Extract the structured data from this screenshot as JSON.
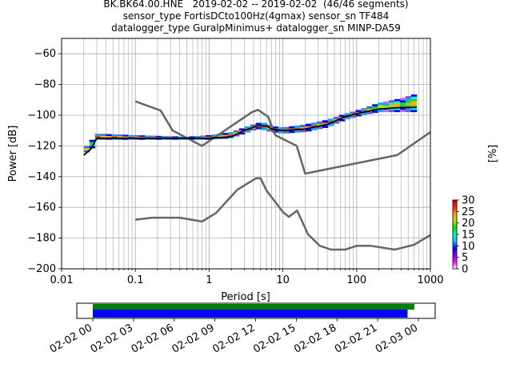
{
  "title_lines": [
    "BK.BK64.00.HNE   2019-02-02 -- 2019-02-02  (46/46 segments)",
    "sensor_type FortisDCto100Hz(4gmax) sensor_sn TF484",
    "datalogger_type GuralpMinimus+ datalogger_sn MINP-DA59"
  ],
  "chart_data": {
    "type": "heatmap",
    "xlabel": "Period [s]",
    "ylabel": "Power [dB]",
    "x_scale": "log",
    "xlim": [
      0.01,
      1000
    ],
    "ylim": [
      -200,
      -50
    ],
    "xticks": [
      "0.01",
      "0.1",
      "1",
      "10",
      "100",
      "1000"
    ],
    "yticks": [
      -60,
      -80,
      -100,
      -120,
      -140,
      -160,
      -180,
      -200
    ],
    "grid": true,
    "colorbar": {
      "label": "[%]",
      "range": [
        0,
        30
      ],
      "ticks": [
        0,
        5,
        10,
        15,
        20,
        25,
        30
      ]
    },
    "noise_model_high": [
      [
        0.1,
        -91
      ],
      [
        0.22,
        -97
      ],
      [
        0.32,
        -110
      ],
      [
        0.8,
        -120
      ],
      [
        3.8,
        -98
      ],
      [
        4.6,
        -96.5
      ],
      [
        6.3,
        -101
      ],
      [
        7.9,
        -113
      ],
      [
        15.4,
        -120
      ],
      [
        20,
        -138
      ],
      [
        354.8,
        -126
      ],
      [
        1000,
        -111
      ]
    ],
    "noise_model_low": [
      [
        0.1,
        -168
      ],
      [
        0.17,
        -166.7
      ],
      [
        0.4,
        -166.7
      ],
      [
        0.8,
        -169.2
      ],
      [
        1.24,
        -163.7
      ],
      [
        2.4,
        -148.6
      ],
      [
        4.3,
        -141.1
      ],
      [
        5,
        -141.1
      ],
      [
        6,
        -149
      ],
      [
        10,
        -163
      ],
      [
        12,
        -166.2
      ],
      [
        15.6,
        -162.1
      ],
      [
        21.9,
        -177.5
      ],
      [
        31.6,
        -185
      ],
      [
        45,
        -187.5
      ],
      [
        70,
        -187.5
      ],
      [
        101,
        -185
      ],
      [
        154,
        -185
      ],
      [
        328,
        -187.5
      ],
      [
        600,
        -184.4
      ],
      [
        1000,
        -178
      ]
    ],
    "median_curve": [
      [
        0.02,
        -126
      ],
      [
        0.025,
        -122
      ],
      [
        0.03,
        -115
      ],
      [
        0.1,
        -115
      ],
      [
        0.5,
        -115
      ],
      [
        1,
        -115
      ],
      [
        2,
        -114
      ],
      [
        3,
        -110
      ],
      [
        4.5,
        -107
      ],
      [
        6,
        -107
      ],
      [
        7,
        -109
      ],
      [
        10,
        -110
      ],
      [
        20,
        -109
      ],
      [
        40,
        -106
      ],
      [
        70,
        -101
      ],
      [
        100,
        -99
      ],
      [
        200,
        -96
      ],
      [
        400,
        -95
      ],
      [
        650,
        -95
      ]
    ],
    "psd_band": [
      [
        0.02,
        -125,
        -122
      ],
      [
        0.025,
        -123,
        -117
      ],
      [
        0.03,
        -116,
        -112
      ],
      [
        0.1,
        -116,
        -113
      ],
      [
        0.5,
        -116,
        -114
      ],
      [
        1,
        -116,
        -113
      ],
      [
        2,
        -115,
        -111
      ],
      [
        3,
        -112,
        -108
      ],
      [
        4.5,
        -109,
        -105
      ],
      [
        6,
        -110,
        -105
      ],
      [
        7,
        -111,
        -107
      ],
      [
        10,
        -112,
        -108
      ],
      [
        20,
        -111,
        -106
      ],
      [
        40,
        -108,
        -103
      ],
      [
        70,
        -103,
        -99
      ],
      [
        100,
        -101,
        -97
      ],
      [
        200,
        -98,
        -92
      ],
      [
        400,
        -98,
        -89
      ],
      [
        650,
        -98,
        -86
      ]
    ],
    "timeline": {
      "xticks": [
        "02-02 00",
        "02-02 03",
        "02-02 06",
        "02-02 09",
        "02-02 12",
        "02-02 15",
        "02-02 18",
        "02-02 21",
        "02-03 00"
      ],
      "data_coverage_hours": [
        0,
        23.7
      ],
      "psd_coverage_hours": [
        0,
        23.2
      ],
      "data_color": "#008000",
      "psd_color": "#0000ff"
    }
  },
  "colors": {
    "noise_model": "#666666",
    "median": "#000000",
    "grid": "#b0b0b0"
  }
}
